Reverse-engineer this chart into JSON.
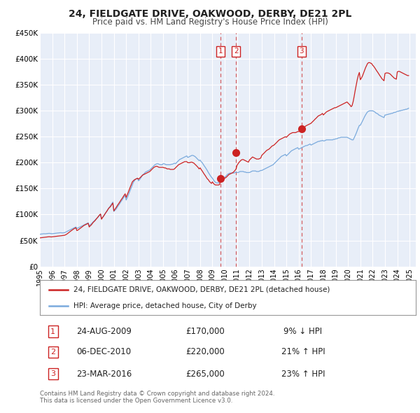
{
  "title": "24, FIELDGATE DRIVE, OAKWOOD, DERBY, DE21 2PL",
  "subtitle": "Price paid vs. HM Land Registry's House Price Index (HPI)",
  "red_label": "24, FIELDGATE DRIVE, OAKWOOD, DERBY, DE21 2PL (detached house)",
  "blue_label": "HPI: Average price, detached house, City of Derby",
  "red_color": "#cc2222",
  "blue_color": "#7aaadd",
  "background_color": "#e8eef8",
  "grid_color": "#ffffff",
  "ylim": [
    0,
    450000
  ],
  "yticks": [
    0,
    50000,
    100000,
    150000,
    200000,
    250000,
    300000,
    350000,
    400000,
    450000
  ],
  "ytick_labels": [
    "£0",
    "£50K",
    "£100K",
    "£150K",
    "£200K",
    "£250K",
    "£300K",
    "£350K",
    "£400K",
    "£450K"
  ],
  "xlim_start": 1995.0,
  "xlim_end": 2025.5,
  "transactions": [
    {
      "num": 1,
      "date": "24-AUG-2009",
      "price": 170000,
      "pct": "9%",
      "dir": "↓",
      "x": 2009.64
    },
    {
      "num": 2,
      "date": "06-DEC-2010",
      "price": 220000,
      "pct": "21%",
      "dir": "↑",
      "x": 2010.92
    },
    {
      "num": 3,
      "date": "23-MAR-2016",
      "price": 265000,
      "pct": "23%",
      "dir": "↑",
      "x": 2016.23
    }
  ],
  "copyright": "Contains HM Land Registry data © Crown copyright and database right 2024.\nThis data is licensed under the Open Government Licence v3.0.",
  "hpi_years": [
    1995.0,
    1995.08,
    1995.17,
    1995.25,
    1995.33,
    1995.42,
    1995.5,
    1995.58,
    1995.67,
    1995.75,
    1995.83,
    1995.92,
    1996.0,
    1996.08,
    1996.17,
    1996.25,
    1996.33,
    1996.42,
    1996.5,
    1996.58,
    1996.67,
    1996.75,
    1996.83,
    1996.92,
    1997.0,
    1997.08,
    1997.17,
    1997.25,
    1997.33,
    1997.42,
    1997.5,
    1997.58,
    1997.67,
    1997.75,
    1997.83,
    1997.92,
    1998.0,
    1998.08,
    1998.17,
    1998.25,
    1998.33,
    1998.42,
    1998.5,
    1998.58,
    1998.67,
    1998.75,
    1998.83,
    1998.92,
    1999.0,
    1999.08,
    1999.17,
    1999.25,
    1999.33,
    1999.42,
    1999.5,
    1999.58,
    1999.67,
    1999.75,
    1999.83,
    1999.92,
    2000.0,
    2000.08,
    2000.17,
    2000.25,
    2000.33,
    2000.42,
    2000.5,
    2000.58,
    2000.67,
    2000.75,
    2000.83,
    2000.92,
    2001.0,
    2001.08,
    2001.17,
    2001.25,
    2001.33,
    2001.42,
    2001.5,
    2001.58,
    2001.67,
    2001.75,
    2001.83,
    2001.92,
    2002.0,
    2002.08,
    2002.17,
    2002.25,
    2002.33,
    2002.42,
    2002.5,
    2002.58,
    2002.67,
    2002.75,
    2002.83,
    2002.92,
    2003.0,
    2003.08,
    2003.17,
    2003.25,
    2003.33,
    2003.42,
    2003.5,
    2003.58,
    2003.67,
    2003.75,
    2003.83,
    2003.92,
    2004.0,
    2004.08,
    2004.17,
    2004.25,
    2004.33,
    2004.42,
    2004.5,
    2004.58,
    2004.67,
    2004.75,
    2004.83,
    2004.92,
    2005.0,
    2005.08,
    2005.17,
    2005.25,
    2005.33,
    2005.42,
    2005.5,
    2005.58,
    2005.67,
    2005.75,
    2005.83,
    2005.92,
    2006.0,
    2006.08,
    2006.17,
    2006.25,
    2006.33,
    2006.42,
    2006.5,
    2006.58,
    2006.67,
    2006.75,
    2006.83,
    2006.92,
    2007.0,
    2007.08,
    2007.17,
    2007.25,
    2007.33,
    2007.42,
    2007.5,
    2007.58,
    2007.67,
    2007.75,
    2007.83,
    2007.92,
    2008.0,
    2008.08,
    2008.17,
    2008.25,
    2008.33,
    2008.42,
    2008.5,
    2008.58,
    2008.67,
    2008.75,
    2008.83,
    2008.92,
    2009.0,
    2009.08,
    2009.17,
    2009.25,
    2009.33,
    2009.42,
    2009.5,
    2009.58,
    2009.67,
    2009.75,
    2009.83,
    2009.92,
    2010.0,
    2010.08,
    2010.17,
    2010.25,
    2010.33,
    2010.42,
    2010.5,
    2010.58,
    2010.67,
    2010.75,
    2010.83,
    2010.92,
    2011.0,
    2011.08,
    2011.17,
    2011.25,
    2011.33,
    2011.42,
    2011.5,
    2011.58,
    2011.67,
    2011.75,
    2011.83,
    2011.92,
    2012.0,
    2012.08,
    2012.17,
    2012.25,
    2012.33,
    2012.42,
    2012.5,
    2012.58,
    2012.67,
    2012.75,
    2012.83,
    2012.92,
    2013.0,
    2013.08,
    2013.17,
    2013.25,
    2013.33,
    2013.42,
    2013.5,
    2013.58,
    2013.67,
    2013.75,
    2013.83,
    2013.92,
    2014.0,
    2014.08,
    2014.17,
    2014.25,
    2014.33,
    2014.42,
    2014.5,
    2014.58,
    2014.67,
    2014.75,
    2014.83,
    2014.92,
    2015.0,
    2015.08,
    2015.17,
    2015.25,
    2015.33,
    2015.42,
    2015.5,
    2015.58,
    2015.67,
    2015.75,
    2015.83,
    2015.92,
    2016.0,
    2016.08,
    2016.17,
    2016.25,
    2016.33,
    2016.42,
    2016.5,
    2016.58,
    2016.67,
    2016.75,
    2016.83,
    2016.92,
    2017.0,
    2017.08,
    2017.17,
    2017.25,
    2017.33,
    2017.42,
    2017.5,
    2017.58,
    2017.67,
    2017.75,
    2017.83,
    2017.92,
    2018.0,
    2018.08,
    2018.17,
    2018.25,
    2018.33,
    2018.42,
    2018.5,
    2018.58,
    2018.67,
    2018.75,
    2018.83,
    2018.92,
    2019.0,
    2019.08,
    2019.17,
    2019.25,
    2019.33,
    2019.42,
    2019.5,
    2019.58,
    2019.67,
    2019.75,
    2019.83,
    2019.92,
    2020.0,
    2020.08,
    2020.17,
    2020.25,
    2020.33,
    2020.42,
    2020.5,
    2020.58,
    2020.67,
    2020.75,
    2020.83,
    2020.92,
    2021.0,
    2021.08,
    2021.17,
    2021.25,
    2021.33,
    2021.42,
    2021.5,
    2021.58,
    2021.67,
    2021.75,
    2021.83,
    2021.92,
    2022.0,
    2022.08,
    2022.17,
    2022.25,
    2022.33,
    2022.42,
    2022.5,
    2022.58,
    2022.67,
    2022.75,
    2022.83,
    2022.92,
    2023.0,
    2023.08,
    2023.17,
    2023.25,
    2023.33,
    2023.42,
    2023.5,
    2023.58,
    2023.67,
    2023.75,
    2023.83,
    2023.92,
    2024.0,
    2024.08,
    2024.17,
    2024.25,
    2024.33,
    2024.42,
    2024.5,
    2024.58,
    2024.67,
    2024.75,
    2024.83,
    2024.92
  ],
  "hpi_vals": [
    62000,
    62200,
    62500,
    62800,
    63000,
    62800,
    63000,
    63200,
    63500,
    63700,
    63500,
    63200,
    63000,
    63200,
    63500,
    63800,
    64000,
    64200,
    64500,
    64800,
    65000,
    64800,
    64600,
    64800,
    65000,
    66000,
    67000,
    68000,
    69000,
    70000,
    71000,
    72000,
    73000,
    74000,
    75000,
    76000,
    73000,
    74000,
    75000,
    76000,
    77000,
    78000,
    79000,
    80000,
    81000,
    82000,
    83000,
    84000,
    78000,
    80000,
    82000,
    84000,
    86000,
    88000,
    90000,
    92000,
    94000,
    96000,
    98000,
    100000,
    92000,
    95000,
    97000,
    100000,
    103000,
    106000,
    109000,
    112000,
    115000,
    118000,
    121000,
    124000,
    106000,
    108000,
    110000,
    113000,
    116000,
    119000,
    122000,
    125000,
    128000,
    131000,
    134000,
    137000,
    128000,
    132000,
    137000,
    142000,
    147000,
    152000,
    157000,
    162000,
    165000,
    168000,
    169000,
    170000,
    165000,
    167000,
    170000,
    173000,
    176000,
    178000,
    180000,
    182000,
    183000,
    184000,
    185000,
    186000,
    188000,
    190000,
    192000,
    194000,
    196000,
    197000,
    198000,
    198000,
    197000,
    196000,
    196000,
    196000,
    198000,
    198000,
    197000,
    196000,
    196000,
    196000,
    196000,
    196000,
    197000,
    197000,
    198000,
    199000,
    198000,
    200000,
    202000,
    204000,
    206000,
    207000,
    208000,
    209000,
    210000,
    211000,
    212000,
    213000,
    210000,
    211000,
    212000,
    213000,
    214000,
    214000,
    213000,
    212000,
    210000,
    208000,
    206000,
    204000,
    205000,
    202000,
    200000,
    197000,
    194000,
    191000,
    188000,
    185000,
    181000,
    178000,
    175000,
    172000,
    170000,
    167000,
    164000,
    162000,
    161000,
    161000,
    161000,
    162000,
    163000,
    165000,
    167000,
    169000,
    172000,
    174000,
    176000,
    178000,
    179000,
    180000,
    180000,
    180000,
    180000,
    180000,
    181000,
    182000,
    181000,
    181000,
    182000,
    183000,
    183000,
    183000,
    183000,
    182000,
    182000,
    181000,
    181000,
    181000,
    181000,
    182000,
    183000,
    184000,
    184000,
    184000,
    184000,
    183000,
    183000,
    183000,
    184000,
    185000,
    185000,
    186000,
    187000,
    188000,
    189000,
    190000,
    191000,
    192000,
    193000,
    194000,
    195000,
    196000,
    198000,
    200000,
    202000,
    204000,
    206000,
    208000,
    210000,
    212000,
    213000,
    214000,
    215000,
    216000,
    213000,
    215000,
    217000,
    219000,
    221000,
    223000,
    224000,
    225000,
    226000,
    227000,
    228000,
    229000,
    226000,
    227000,
    228000,
    229000,
    230000,
    231000,
    232000,
    233000,
    233000,
    234000,
    235000,
    236000,
    234000,
    235000,
    236000,
    237000,
    238000,
    239000,
    240000,
    241000,
    241000,
    242000,
    242000,
    243000,
    242000,
    242000,
    243000,
    244000,
    244000,
    244000,
    244000,
    244000,
    244000,
    244000,
    245000,
    245000,
    246000,
    246000,
    247000,
    248000,
    248000,
    249000,
    249000,
    249000,
    249000,
    249000,
    249000,
    249000,
    248000,
    247000,
    246000,
    245000,
    244000,
    244000,
    248000,
    252000,
    257000,
    262000,
    267000,
    272000,
    272000,
    276000,
    280000,
    284000,
    288000,
    292000,
    295000,
    298000,
    299000,
    300000,
    300000,
    300000,
    300000,
    299000,
    298000,
    296000,
    295000,
    294000,
    292000,
    291000,
    290000,
    289000,
    288000,
    287000,
    292000,
    292000,
    293000,
    293000,
    294000,
    294000,
    295000,
    295000,
    296000,
    297000,
    297000,
    298000,
    299000,
    299000,
    300000,
    300000,
    301000,
    301000,
    302000,
    302000,
    303000,
    303000,
    304000,
    305000
  ],
  "red_years": [
    1995.0,
    1995.08,
    1995.17,
    1995.25,
    1995.33,
    1995.42,
    1995.5,
    1995.58,
    1995.67,
    1995.75,
    1995.83,
    1995.92,
    1996.0,
    1996.08,
    1996.17,
    1996.25,
    1996.33,
    1996.42,
    1996.5,
    1996.58,
    1996.67,
    1996.75,
    1996.83,
    1996.92,
    1997.0,
    1997.08,
    1997.17,
    1997.25,
    1997.33,
    1997.42,
    1997.5,
    1997.58,
    1997.67,
    1997.75,
    1997.83,
    1997.92,
    1998.0,
    1998.08,
    1998.17,
    1998.25,
    1998.33,
    1998.42,
    1998.5,
    1998.58,
    1998.67,
    1998.75,
    1998.83,
    1998.92,
    1999.0,
    1999.08,
    1999.17,
    1999.25,
    1999.33,
    1999.42,
    1999.5,
    1999.58,
    1999.67,
    1999.75,
    1999.83,
    1999.92,
    2000.0,
    2000.08,
    2000.17,
    2000.25,
    2000.33,
    2000.42,
    2000.5,
    2000.58,
    2000.67,
    2000.75,
    2000.83,
    2000.92,
    2001.0,
    2001.08,
    2001.17,
    2001.25,
    2001.33,
    2001.42,
    2001.5,
    2001.58,
    2001.67,
    2001.75,
    2001.83,
    2001.92,
    2002.0,
    2002.08,
    2002.17,
    2002.25,
    2002.33,
    2002.42,
    2002.5,
    2002.58,
    2002.67,
    2002.75,
    2002.83,
    2002.92,
    2003.0,
    2003.08,
    2003.17,
    2003.25,
    2003.33,
    2003.42,
    2003.5,
    2003.58,
    2003.67,
    2003.75,
    2003.83,
    2003.92,
    2004.0,
    2004.08,
    2004.17,
    2004.25,
    2004.33,
    2004.42,
    2004.5,
    2004.58,
    2004.67,
    2004.75,
    2004.83,
    2004.92,
    2005.0,
    2005.08,
    2005.17,
    2005.25,
    2005.33,
    2005.42,
    2005.5,
    2005.58,
    2005.67,
    2005.75,
    2005.83,
    2005.92,
    2006.0,
    2006.08,
    2006.17,
    2006.25,
    2006.33,
    2006.42,
    2006.5,
    2006.58,
    2006.67,
    2006.75,
    2006.83,
    2006.92,
    2007.0,
    2007.08,
    2007.17,
    2007.25,
    2007.33,
    2007.42,
    2007.5,
    2007.58,
    2007.67,
    2007.75,
    2007.83,
    2007.92,
    2008.0,
    2008.08,
    2008.17,
    2008.25,
    2008.33,
    2008.42,
    2008.5,
    2008.58,
    2008.67,
    2008.75,
    2008.83,
    2008.92,
    2009.0,
    2009.08,
    2009.17,
    2009.25,
    2009.33,
    2009.42,
    2009.5,
    2009.58,
    2009.64,
    2009.75,
    2009.83,
    2009.92,
    2010.0,
    2010.08,
    2010.17,
    2010.25,
    2010.33,
    2010.42,
    2010.5,
    2010.58,
    2010.67,
    2010.75,
    2010.83,
    2010.92,
    2011.0,
    2011.08,
    2011.17,
    2011.25,
    2011.33,
    2011.42,
    2011.5,
    2011.58,
    2011.67,
    2011.75,
    2011.83,
    2011.92,
    2012.0,
    2012.08,
    2012.17,
    2012.25,
    2012.33,
    2012.42,
    2012.5,
    2012.58,
    2012.67,
    2012.75,
    2012.83,
    2012.92,
    2013.0,
    2013.08,
    2013.17,
    2013.25,
    2013.33,
    2013.42,
    2013.5,
    2013.58,
    2013.67,
    2013.75,
    2013.83,
    2013.92,
    2014.0,
    2014.08,
    2014.17,
    2014.25,
    2014.33,
    2014.42,
    2014.5,
    2014.58,
    2014.67,
    2014.75,
    2014.83,
    2014.92,
    2015.0,
    2015.08,
    2015.17,
    2015.25,
    2015.33,
    2015.42,
    2015.5,
    2015.58,
    2015.67,
    2015.75,
    2015.83,
    2015.92,
    2016.0,
    2016.08,
    2016.17,
    2016.23,
    2016.33,
    2016.42,
    2016.5,
    2016.58,
    2016.67,
    2016.75,
    2016.83,
    2016.92,
    2017.0,
    2017.08,
    2017.17,
    2017.25,
    2017.33,
    2017.42,
    2017.5,
    2017.58,
    2017.67,
    2017.75,
    2017.83,
    2017.92,
    2018.0,
    2018.08,
    2018.17,
    2018.25,
    2018.33,
    2018.42,
    2018.5,
    2018.58,
    2018.67,
    2018.75,
    2018.83,
    2018.92,
    2019.0,
    2019.08,
    2019.17,
    2019.25,
    2019.33,
    2019.42,
    2019.5,
    2019.58,
    2019.67,
    2019.75,
    2019.83,
    2019.92,
    2020.0,
    2020.08,
    2020.17,
    2020.25,
    2020.33,
    2020.42,
    2020.5,
    2020.58,
    2020.67,
    2020.75,
    2020.83,
    2020.92,
    2021.0,
    2021.08,
    2021.17,
    2021.25,
    2021.33,
    2021.42,
    2021.5,
    2021.58,
    2021.67,
    2021.75,
    2021.83,
    2021.92,
    2022.0,
    2022.08,
    2022.17,
    2022.25,
    2022.33,
    2022.42,
    2022.5,
    2022.58,
    2022.67,
    2022.75,
    2022.83,
    2022.92,
    2023.0,
    2023.08,
    2023.17,
    2023.25,
    2023.33,
    2023.42,
    2023.5,
    2023.58,
    2023.67,
    2023.75,
    2023.83,
    2023.92,
    2024.0,
    2024.08,
    2024.17,
    2024.25,
    2024.33,
    2024.42,
    2024.5,
    2024.58,
    2024.67,
    2024.75,
    2024.83,
    2024.92
  ],
  "red_vals": [
    55000,
    55200,
    55500,
    55800,
    56000,
    56200,
    56500,
    56800,
    57000,
    57200,
    57000,
    56800,
    57000,
    57200,
    57500,
    57800,
    58000,
    58200,
    58500,
    58800,
    59000,
    59200,
    59500,
    59800,
    60000,
    61000,
    62000,
    63500,
    65000,
    66500,
    68000,
    69500,
    71000,
    72500,
    73500,
    74500,
    69000,
    70000,
    71500,
    73000,
    74500,
    76000,
    77500,
    79000,
    80000,
    81000,
    82000,
    83000,
    76000,
    78000,
    80000,
    82500,
    85000,
    87000,
    89000,
    91500,
    94000,
    96500,
    99000,
    101000,
    91000,
    94000,
    97000,
    100000,
    103000,
    106000,
    109000,
    112000,
    114000,
    116000,
    119000,
    122000,
    107000,
    110000,
    113000,
    116000,
    119000,
    122000,
    125000,
    128000,
    131000,
    134000,
    137000,
    140000,
    133000,
    138000,
    143000,
    148000,
    153000,
    158000,
    163000,
    165000,
    167000,
    168000,
    169000,
    170000,
    168000,
    170000,
    172000,
    174000,
    176000,
    177000,
    178000,
    179000,
    180000,
    181000,
    182000,
    183000,
    185000,
    187000,
    189000,
    191000,
    192000,
    193000,
    193000,
    192000,
    191000,
    191000,
    191000,
    191000,
    191000,
    190000,
    190000,
    189000,
    188000,
    188000,
    188000,
    187000,
    187000,
    187000,
    187000,
    188000,
    190000,
    192000,
    194000,
    196000,
    197000,
    198000,
    199000,
    200000,
    201000,
    202000,
    202000,
    202000,
    200000,
    200000,
    200000,
    201000,
    201000,
    200000,
    199000,
    197000,
    195000,
    193000,
    191000,
    188000,
    190000,
    187000,
    184000,
    181000,
    178000,
    175000,
    172000,
    169000,
    167000,
    164000,
    162000,
    160000,
    163000,
    160000,
    158000,
    157000,
    157000,
    157000,
    157000,
    158000,
    163000,
    167000,
    168000,
    169000,
    170000,
    171000,
    173000,
    175000,
    177000,
    178000,
    179000,
    180000,
    181000,
    183000,
    185000,
    188000,
    195000,
    198000,
    201000,
    203000,
    205000,
    206000,
    206000,
    205000,
    204000,
    203000,
    202000,
    201000,
    205000,
    207000,
    209000,
    211000,
    210000,
    209000,
    208000,
    207000,
    207000,
    207000,
    208000,
    209000,
    214000,
    216000,
    218000,
    220000,
    222000,
    224000,
    225000,
    226000,
    228000,
    230000,
    232000,
    233000,
    234000,
    236000,
    238000,
    240000,
    242000,
    244000,
    245000,
    246000,
    247000,
    248000,
    249000,
    250000,
    249000,
    251000,
    253000,
    255000,
    256000,
    257000,
    258000,
    258000,
    258000,
    258000,
    259000,
    260000,
    260000,
    261000,
    263000,
    265000,
    267000,
    268000,
    269000,
    271000,
    272000,
    273000,
    274000,
    275000,
    276000,
    278000,
    280000,
    282000,
    284000,
    286000,
    288000,
    290000,
    291000,
    292000,
    293000,
    295000,
    292000,
    294000,
    296000,
    298000,
    299000,
    300000,
    301000,
    302000,
    303000,
    304000,
    305000,
    306000,
    306000,
    307000,
    308000,
    309000,
    310000,
    311000,
    312000,
    313000,
    314000,
    315000,
    316000,
    317000,
    315000,
    313000,
    311000,
    308000,
    310000,
    318000,
    328000,
    339000,
    350000,
    360000,
    368000,
    374000,
    360000,
    363000,
    367000,
    372000,
    377000,
    383000,
    387000,
    391000,
    393000,
    393000,
    392000,
    391000,
    388000,
    386000,
    383000,
    380000,
    377000,
    374000,
    371000,
    368000,
    365000,
    362000,
    360000,
    358000,
    372000,
    373000,
    373000,
    373000,
    372000,
    371000,
    369000,
    367000,
    365000,
    363000,
    362000,
    361000,
    375000,
    376000,
    376000,
    375000,
    374000,
    373000,
    372000,
    371000,
    370000,
    369000,
    368000,
    368000
  ]
}
